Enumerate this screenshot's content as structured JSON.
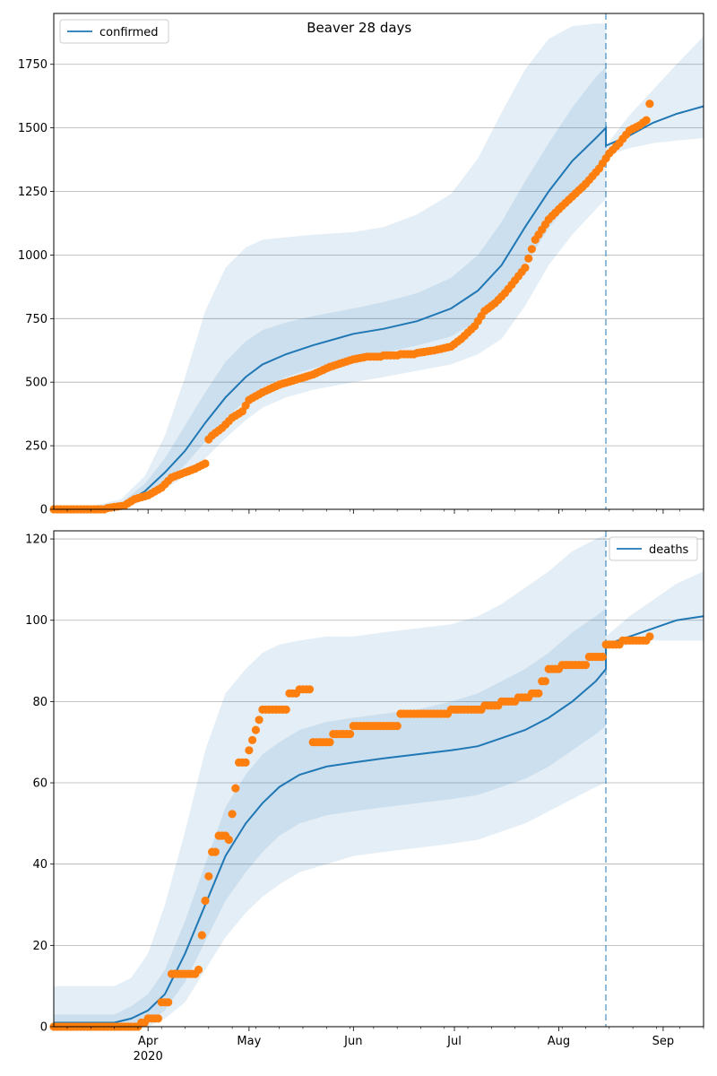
{
  "chart_data": [
    {
      "type": "line",
      "title": "Beaver 28 days",
      "legend": {
        "placement": "top-left",
        "entries": [
          "confirmed"
        ]
      },
      "grid": "y",
      "xlim": [
        "2020-03-04",
        "2020-09-13"
      ],
      "ylim": [
        0,
        1950
      ],
      "y_ticks": [
        0,
        250,
        500,
        750,
        1000,
        1250,
        1500,
        1750
      ],
      "x_ticks": [
        {
          "date": "2020-04-01",
          "label": "Apr",
          "sublabel": ""
        },
        {
          "date": "2020-05-01",
          "label": "May",
          "sublabel": ""
        },
        {
          "date": "2020-06-01",
          "label": "Jun",
          "sublabel": ""
        },
        {
          "date": "2020-07-01",
          "label": "Jul",
          "sublabel": ""
        },
        {
          "date": "2020-08-01",
          "label": "Aug",
          "sublabel": ""
        },
        {
          "date": "2020-09-01",
          "label": "Sep",
          "sublabel": ""
        }
      ],
      "forecast_start": "2020-08-15",
      "series": [
        {
          "name": "confirmed",
          "kind": "line",
          "color": "#1f77b4",
          "x": [
            "2020-03-04",
            "2020-03-14",
            "2020-03-24",
            "2020-03-31",
            "2020-04-06",
            "2020-04-12",
            "2020-04-18",
            "2020-04-24",
            "2020-04-30",
            "2020-05-05",
            "2020-05-12",
            "2020-05-20",
            "2020-06-01",
            "2020-06-10",
            "2020-06-20",
            "2020-06-30",
            "2020-07-08",
            "2020-07-15",
            "2020-07-22",
            "2020-07-29",
            "2020-08-05",
            "2020-08-12",
            "2020-08-15",
            "2020-08-15",
            "2020-08-22",
            "2020-08-29",
            "2020-09-05",
            "2020-09-13"
          ],
          "y": [
            0,
            2,
            15,
            70,
            145,
            230,
            340,
            440,
            520,
            570,
            610,
            645,
            690,
            710,
            740,
            790,
            860,
            960,
            1110,
            1250,
            1370,
            1460,
            1500,
            1430,
            1470,
            1520,
            1555,
            1585
          ]
        },
        {
          "name": "",
          "kind": "band",
          "color": "#1f77b4",
          "x": [
            "2020-03-04",
            "2020-03-14",
            "2020-03-24",
            "2020-03-31",
            "2020-04-06",
            "2020-04-12",
            "2020-04-18",
            "2020-04-24",
            "2020-04-30",
            "2020-05-05",
            "2020-05-12",
            "2020-05-20",
            "2020-06-01",
            "2020-06-10",
            "2020-06-20",
            "2020-06-30",
            "2020-07-08",
            "2020-07-15",
            "2020-07-22",
            "2020-07-29",
            "2020-08-05",
            "2020-08-12",
            "2020-08-15"
          ],
          "lower": [
            0,
            0,
            5,
            35,
            80,
            130,
            200,
            280,
            350,
            400,
            440,
            470,
            500,
            520,
            545,
            570,
            610,
            670,
            800,
            960,
            1080,
            1180,
            1220
          ],
          "upper": [
            3,
            8,
            40,
            130,
            290,
            520,
            780,
            950,
            1030,
            1060,
            1070,
            1080,
            1090,
            1110,
            1160,
            1240,
            1380,
            1560,
            1730,
            1850,
            1900,
            1910,
            1910
          ]
        },
        {
          "name": "",
          "kind": "band",
          "color": "#1f77b4",
          "x": [
            "2020-03-04",
            "2020-03-14",
            "2020-03-24",
            "2020-03-31",
            "2020-04-06",
            "2020-04-12",
            "2020-04-18",
            "2020-04-24",
            "2020-04-30",
            "2020-05-05",
            "2020-05-12",
            "2020-05-20",
            "2020-06-01",
            "2020-06-10",
            "2020-06-20",
            "2020-06-30",
            "2020-07-08",
            "2020-07-15",
            "2020-07-22",
            "2020-07-29",
            "2020-08-05",
            "2020-08-12",
            "2020-08-15"
          ],
          "lower": [
            0,
            1,
            8,
            48,
            105,
            175,
            265,
            355,
            430,
            480,
            520,
            555,
            595,
            615,
            645,
            680,
            740,
            830,
            960,
            1105,
            1225,
            1320,
            1360
          ],
          "upper": [
            2,
            4,
            25,
            100,
            200,
            330,
            460,
            580,
            660,
            705,
            735,
            760,
            790,
            815,
            850,
            910,
            1000,
            1130,
            1290,
            1440,
            1580,
            1700,
            1740
          ]
        },
        {
          "name": "",
          "kind": "band",
          "color": "#1f77b4",
          "x": [
            "2020-08-15",
            "2020-08-22",
            "2020-08-29",
            "2020-09-05",
            "2020-09-13"
          ],
          "lower": [
            1390,
            1420,
            1440,
            1450,
            1460
          ],
          "upper": [
            1430,
            1550,
            1650,
            1750,
            1860
          ]
        },
        {
          "name": "",
          "kind": "points",
          "color": "#ff7f0e",
          "x": [
            "2020-03-04",
            "2020-03-10",
            "2020-03-16",
            "2020-03-20",
            "2020-03-25",
            "2020-03-28",
            "2020-04-01",
            "2020-04-05",
            "2020-04-08",
            "2020-04-12",
            "2020-04-15",
            "2020-04-18",
            "2020-04-19",
            "2020-04-20",
            "2020-04-23",
            "2020-04-26",
            "2020-04-29",
            "2020-05-01",
            "2020-05-05",
            "2020-05-10",
            "2020-05-15",
            "2020-05-20",
            "2020-05-25",
            "2020-06-01",
            "2020-06-05",
            "2020-06-10",
            "2020-06-15",
            "2020-06-20",
            "2020-06-25",
            "2020-06-30",
            "2020-07-03",
            "2020-07-07",
            "2020-07-10",
            "2020-07-13",
            "2020-07-16",
            "2020-07-19",
            "2020-07-22",
            "2020-07-25",
            "2020-07-29",
            "2020-08-01",
            "2020-08-05",
            "2020-08-09",
            "2020-08-13",
            "2020-08-16",
            "2020-08-19",
            "2020-08-22",
            "2020-08-25",
            "2020-08-27",
            "2020-08-28"
          ],
          "y": [
            0,
            0,
            0,
            5,
            15,
            40,
            55,
            85,
            125,
            145,
            160,
            180,
            275,
            290,
            320,
            360,
            385,
            430,
            460,
            490,
            510,
            530,
            560,
            590,
            600,
            605,
            610,
            615,
            625,
            640,
            670,
            720,
            780,
            810,
            850,
            900,
            950,
            1060,
            1140,
            1180,
            1230,
            1280,
            1340,
            1400,
            1440,
            1490,
            1510,
            1530,
            1595
          ]
        }
      ]
    },
    {
      "type": "line",
      "title": "",
      "legend": {
        "placement": "top-right",
        "entries": [
          "deaths"
        ]
      },
      "grid": "y",
      "xlim": [
        "2020-03-04",
        "2020-09-13"
      ],
      "ylim": [
        0,
        122
      ],
      "y_ticks": [
        0,
        20,
        40,
        60,
        80,
        100,
        120
      ],
      "x_ticks": [
        {
          "date": "2020-04-01",
          "label": "Apr",
          "sublabel": "2020"
        },
        {
          "date": "2020-05-01",
          "label": "May",
          "sublabel": ""
        },
        {
          "date": "2020-06-01",
          "label": "Jun",
          "sublabel": ""
        },
        {
          "date": "2020-07-01",
          "label": "Jul",
          "sublabel": ""
        },
        {
          "date": "2020-08-01",
          "label": "Aug",
          "sublabel": ""
        },
        {
          "date": "2020-09-01",
          "label": "Sep",
          "sublabel": ""
        }
      ],
      "forecast_start": "2020-08-15",
      "series": [
        {
          "name": "deaths",
          "kind": "line",
          "color": "#1f77b4",
          "x": [
            "2020-03-04",
            "2020-03-22",
            "2020-03-27",
            "2020-04-01",
            "2020-04-06",
            "2020-04-12",
            "2020-04-18",
            "2020-04-24",
            "2020-04-30",
            "2020-05-05",
            "2020-05-10",
            "2020-05-16",
            "2020-05-24",
            "2020-06-01",
            "2020-06-10",
            "2020-06-20",
            "2020-06-30",
            "2020-07-08",
            "2020-07-15",
            "2020-07-22",
            "2020-07-29",
            "2020-08-05",
            "2020-08-12",
            "2020-08-15",
            "2020-08-15",
            "2020-08-22",
            "2020-08-29",
            "2020-09-05",
            "2020-09-13"
          ],
          "y": [
            1,
            1,
            2,
            4,
            8,
            18,
            30,
            42,
            50,
            55,
            59,
            62,
            64,
            65,
            66,
            67,
            68,
            69,
            71,
            73,
            76,
            80,
            85,
            88,
            94,
            96,
            98,
            100,
            101
          ]
        },
        {
          "name": "",
          "kind": "band",
          "color": "#1f77b4",
          "x": [
            "2020-03-04",
            "2020-03-22",
            "2020-03-27",
            "2020-04-01",
            "2020-04-06",
            "2020-04-12",
            "2020-04-18",
            "2020-04-24",
            "2020-04-30",
            "2020-05-05",
            "2020-05-10",
            "2020-05-16",
            "2020-05-24",
            "2020-06-01",
            "2020-06-10",
            "2020-06-20",
            "2020-06-30",
            "2020-07-08",
            "2020-07-15",
            "2020-07-22",
            "2020-07-29",
            "2020-08-05",
            "2020-08-12",
            "2020-08-15"
          ],
          "lower": [
            0,
            0,
            0,
            0,
            2,
            6,
            14,
            22,
            28,
            32,
            35,
            38,
            40,
            42,
            43,
            44,
            45,
            46,
            48,
            50,
            53,
            56,
            59,
            60
          ],
          "upper": [
            10,
            10,
            12,
            18,
            30,
            48,
            68,
            82,
            88,
            92,
            94,
            95,
            96,
            96,
            97,
            98,
            99,
            101,
            104,
            108,
            112,
            117,
            120,
            121
          ]
        },
        {
          "name": "",
          "kind": "band",
          "color": "#1f77b4",
          "x": [
            "2020-03-04",
            "2020-03-22",
            "2020-03-27",
            "2020-04-01",
            "2020-04-06",
            "2020-04-12",
            "2020-04-18",
            "2020-04-24",
            "2020-04-30",
            "2020-05-05",
            "2020-05-10",
            "2020-05-16",
            "2020-05-24",
            "2020-06-01",
            "2020-06-10",
            "2020-06-20",
            "2020-06-30",
            "2020-07-08",
            "2020-07-15",
            "2020-07-22",
            "2020-07-29",
            "2020-08-05",
            "2020-08-12",
            "2020-08-15"
          ],
          "lower": [
            0,
            0,
            0,
            1,
            4,
            11,
            21,
            31,
            38,
            43,
            47,
            50,
            52,
            53,
            54,
            55,
            56,
            57,
            59,
            61,
            64,
            68,
            72,
            74
          ],
          "upper": [
            3,
            3,
            5,
            8,
            14,
            26,
            40,
            54,
            62,
            67,
            70,
            73,
            75,
            76,
            77,
            78,
            80,
            82,
            85,
            88,
            92,
            97,
            101,
            103
          ]
        },
        {
          "name": "",
          "kind": "band",
          "color": "#1f77b4",
          "x": [
            "2020-08-15",
            "2020-08-22",
            "2020-08-29",
            "2020-09-05",
            "2020-09-13"
          ],
          "lower": [
            93,
            94,
            95,
            95,
            95
          ],
          "upper": [
            96,
            101,
            105,
            109,
            112
          ]
        },
        {
          "name": "",
          "kind": "points",
          "color": "#ff7f0e",
          "x": [
            "2020-03-04",
            "2020-03-20",
            "2020-03-30",
            "2020-04-01",
            "2020-04-05",
            "2020-04-08",
            "2020-04-10",
            "2020-04-16",
            "2020-04-18",
            "2020-04-20",
            "2020-04-22",
            "2020-04-23",
            "2020-04-25",
            "2020-04-28",
            "2020-05-01",
            "2020-05-05",
            "2020-05-08",
            "2020-05-13",
            "2020-05-16",
            "2020-05-20",
            "2020-05-26",
            "2020-06-01",
            "2020-06-10",
            "2020-06-15",
            "2020-06-22",
            "2020-06-30",
            "2020-07-10",
            "2020-07-15",
            "2020-07-20",
            "2020-07-24",
            "2020-07-27",
            "2020-07-29",
            "2020-08-02",
            "2020-08-05",
            "2020-08-10",
            "2020-08-15",
            "2020-08-20",
            "2020-08-25",
            "2020-08-28"
          ],
          "y": [
            0,
            0,
            1,
            2,
            6,
            13,
            13,
            14,
            31,
            43,
            47,
            47,
            46,
            65,
            68,
            78,
            78,
            82,
            83,
            70,
            72,
            74,
            74,
            77,
            77,
            78,
            79,
            80,
            81,
            82,
            85,
            88,
            89,
            89,
            91,
            94,
            95,
            95,
            96
          ]
        }
      ]
    }
  ]
}
